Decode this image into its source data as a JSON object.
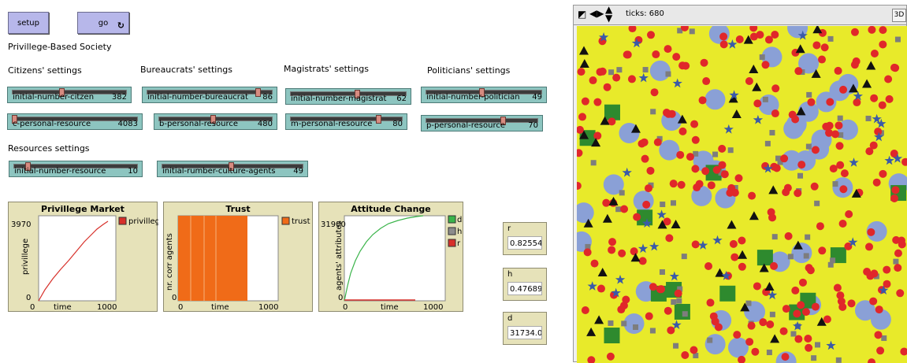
{
  "buttons": {
    "setup": "setup",
    "go": "go"
  },
  "model_title": "Privillege-Based Society",
  "section_labels": {
    "citizens": "Citizens' settings",
    "bureaucrats": "Bureaucrats' settings",
    "magistrats": "Magistrats' settings",
    "politicians": "Politicians' settings",
    "resources": "Resources settings"
  },
  "sliders": [
    {
      "name": "initial-number-citzen",
      "value": "382",
      "fraction": 0.43
    },
    {
      "name": "initial-number-bureaucrat",
      "value": "86",
      "fraction": 0.9
    },
    {
      "name": "initial-number-magistrat",
      "value": "62",
      "fraction": 0.58
    },
    {
      "name": "initial-number-politician",
      "value": "49",
      "fraction": 0.48
    },
    {
      "name": "c-personal-resource",
      "value": "4083",
      "fraction": 0.0
    },
    {
      "name": "b-personal-resource",
      "value": "480",
      "fraction": 0.48
    },
    {
      "name": "m-personal-resource",
      "value": "80",
      "fraction": 0.8
    },
    {
      "name": "p-personal-resource",
      "value": "70",
      "fraction": 0.7
    },
    {
      "name": "initial-number-resource",
      "value": "10",
      "fraction": 0.1
    },
    {
      "name": "initial-rumber-culture-agents",
      "value": "49",
      "fraction": 0.49
    }
  ],
  "plots": [
    {
      "title": "Privillege Market",
      "ymax": "3970",
      "ymin": "0",
      "ylabel": "privillege",
      "xmin": "0",
      "xlabel": "time",
      "xmax": "1000",
      "legend": [
        {
          "label": "privillege",
          "color": "#d7302a"
        }
      ]
    },
    {
      "title": "Trust",
      "ymax": "",
      "ymin": "0",
      "ylabel": "nr. corr agents",
      "xmin": "0",
      "xlabel": "time",
      "xmax": "1000",
      "legend": [
        {
          "label": "trust",
          "color": "#f06b18"
        }
      ]
    },
    {
      "title": "Attitude Change",
      "ymax": "31900",
      "ymin": "0",
      "ylabel": "agents' attributes",
      "xmin": "0",
      "xlabel": "time",
      "xmax": "1000",
      "legend": [
        {
          "label": "d",
          "color": "#3ab44a"
        },
        {
          "label": "h",
          "color": "#8c8c8c"
        },
        {
          "label": "r",
          "color": "#d7302a"
        }
      ]
    }
  ],
  "monitors": [
    {
      "name": "r",
      "value": "0.825542"
    },
    {
      "name": "h",
      "value": "0.476895"
    },
    {
      "name": "d",
      "value": "31734.01"
    }
  ],
  "world": {
    "ticks_label": "ticks: 680",
    "button_3d": "3D"
  },
  "colors": {
    "patch": "#e8ea2a",
    "citizen": "#e0272a",
    "bureaucrat": "#8aa0d6",
    "magistrat": "#2e8a2e",
    "politician": "#3a5aa8",
    "resource": "#111111",
    "culture": "#7d7d7d"
  }
}
